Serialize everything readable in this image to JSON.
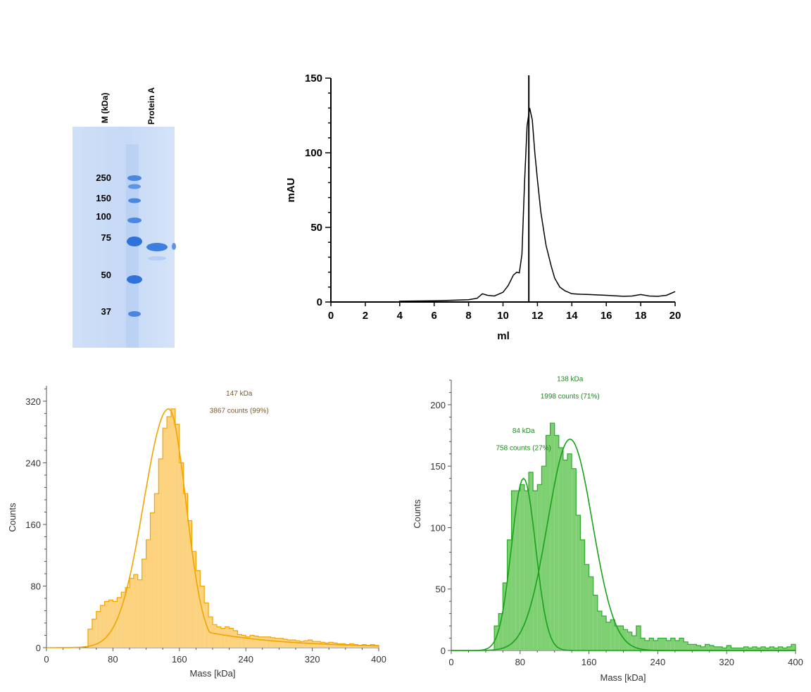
{
  "gel": {
    "lane_headers": [
      "M (kDa)",
      "Protein A"
    ],
    "marker_labels": [
      "250",
      "150",
      "100",
      "75",
      "50",
      "37"
    ],
    "band_color": "#3d7fe0",
    "background_color": "#c9dbf5"
  },
  "chart_data": [
    {
      "id": "sec",
      "type": "line",
      "xlabel": "ml",
      "ylabel": "mAU",
      "xlim": [
        0,
        20
      ],
      "ylim": [
        0,
        150
      ],
      "xticks": [
        0,
        2,
        4,
        6,
        8,
        10,
        12,
        14,
        16,
        18,
        20
      ],
      "yticks": [
        0,
        50,
        100,
        150
      ],
      "marker_line_x": 11.5,
      "series": [
        {
          "color": "#000000",
          "x": [
            4.0,
            6.0,
            8.0,
            8.5,
            8.8,
            9.1,
            9.5,
            10.0,
            10.3,
            10.6,
            10.8,
            10.95,
            11.1,
            11.25,
            11.4,
            11.55,
            11.7,
            11.85,
            12.0,
            12.2,
            12.5,
            12.8,
            13.0,
            13.3,
            13.6,
            14.0,
            14.5,
            15.0,
            16.0,
            17.0,
            17.5,
            18.0,
            18.5,
            19.0,
            19.5,
            20.0
          ],
          "y": [
            0.5,
            0.8,
            1.5,
            2.5,
            5.5,
            4.5,
            4.0,
            6.5,
            11.0,
            18.0,
            20.0,
            19.5,
            32.0,
            80.0,
            118.0,
            130.0,
            122.0,
            100.0,
            82.0,
            60.0,
            38.0,
            24.0,
            16.0,
            10.0,
            7.5,
            5.5,
            5.2,
            5.0,
            4.5,
            3.8,
            4.0,
            5.0,
            4.0,
            3.8,
            4.5,
            7.0
          ]
        }
      ]
    },
    {
      "id": "mp1",
      "type": "bar",
      "xlabel": "Mass [kDa]",
      "ylabel": "Counts",
      "xlim": [
        0,
        400
      ],
      "ylim": [
        0,
        340
      ],
      "xticks": [
        0,
        80,
        160,
        240,
        320,
        400
      ],
      "yticks": [
        0,
        80,
        160,
        240,
        320
      ],
      "bin_start": 50,
      "bin_width": 5,
      "bars": [
        24,
        37,
        47,
        55,
        60,
        62,
        60,
        65,
        72,
        78,
        90,
        95,
        88,
        115,
        140,
        175,
        200,
        245,
        285,
        300,
        310,
        290,
        240,
        200,
        165,
        125,
        100,
        80,
        58,
        40,
        30,
        27,
        25,
        27,
        25,
        22,
        17,
        16,
        14,
        16,
        15,
        14,
        14,
        14,
        13,
        12,
        12,
        11,
        10,
        10,
        9,
        8,
        9,
        10,
        8,
        8,
        7,
        6,
        7,
        6,
        5,
        5,
        4,
        5,
        4,
        3,
        4,
        3,
        4,
        3
      ],
      "fit_peak": 147,
      "fit_height": 310,
      "fit_sigma_left": 30,
      "fit_sigma_right": 21,
      "fit_tail_amp": 32,
      "fit_tail_decay": 95,
      "annotations": [
        {
          "text": "147 kDa",
          "x": 232,
          "y": 327
        },
        {
          "text": "3867 counts (99%)",
          "x": 232,
          "y": 305
        }
      ],
      "fill_color": "#fcd27e",
      "edge_color": "#f0a500",
      "fit_color": "#f0a500",
      "annotation_color": "#7a5a2a"
    },
    {
      "id": "mp2",
      "type": "bar",
      "xlabel": "Mass [kDa]",
      "ylabel": "Counts",
      "xlim": [
        0,
        400
      ],
      "ylim": [
        0,
        220
      ],
      "xticks": [
        0,
        80,
        160,
        240,
        320,
        400
      ],
      "yticks": [
        0,
        50,
        100,
        150,
        200
      ],
      "bin_start": 50,
      "bin_width": 5,
      "bars": [
        20,
        30,
        55,
        90,
        130,
        130,
        135,
        130,
        145,
        130,
        135,
        150,
        175,
        185,
        175,
        165,
        155,
        160,
        148,
        110,
        90,
        70,
        60,
        45,
        32,
        28,
        23,
        25,
        20,
        20,
        17,
        15,
        12,
        20,
        10,
        8,
        10,
        8,
        10,
        10,
        8,
        10,
        8,
        10,
        7,
        5,
        5,
        4,
        3,
        5,
        4,
        3,
        3,
        2,
        4,
        2,
        2,
        2,
        3,
        2,
        3,
        2,
        3,
        2,
        3,
        2,
        3,
        2,
        3,
        5
      ],
      "fits": [
        {
          "mean": 84,
          "height": 140,
          "sigma": 14
        },
        {
          "mean": 138,
          "height": 172,
          "sigma": 26
        }
      ],
      "annotations": [
        {
          "text": "84 kDa",
          "x": 84,
          "y": 177
        },
        {
          "text": "758 counts (27%)",
          "x": 84,
          "y": 163
        },
        {
          "text": "138 kDa",
          "x": 138,
          "y": 219
        },
        {
          "text": "1998 counts (71%)",
          "x": 138,
          "y": 205
        }
      ],
      "fill_color": "#7ed072",
      "edge_color": "#2fab2f",
      "fit_color": "#19a119",
      "annotation_color": "#1a8a1a"
    }
  ]
}
